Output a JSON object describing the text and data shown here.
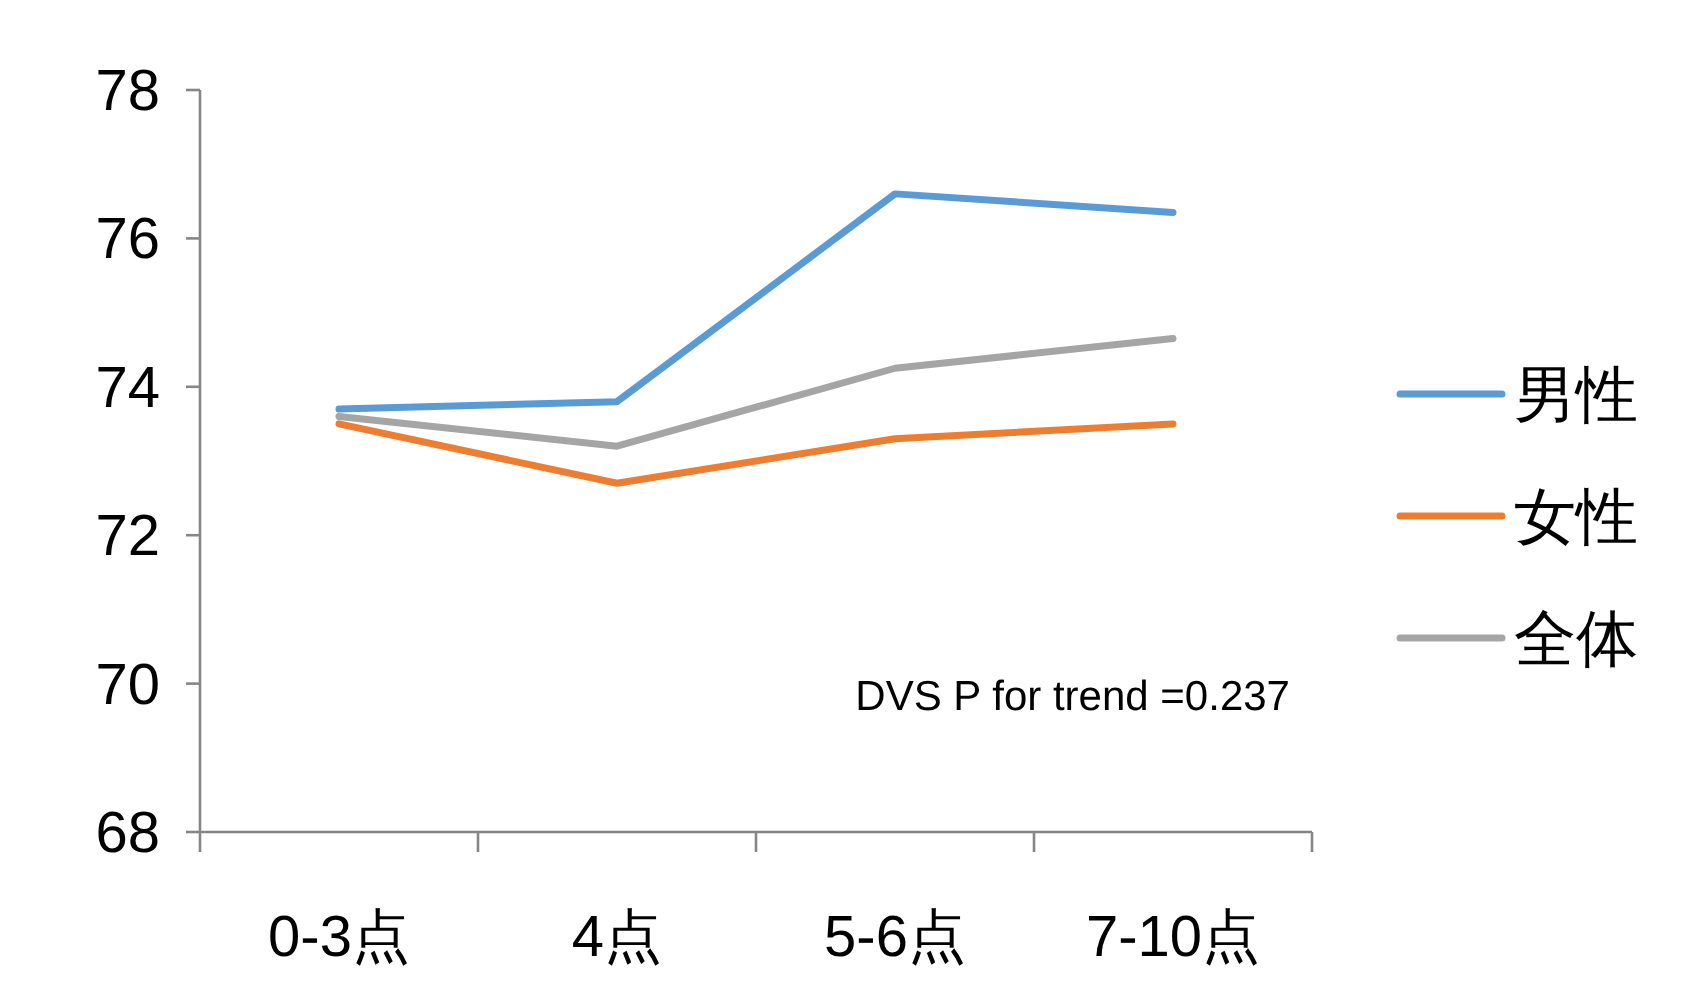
{
  "chart_data": {
    "type": "line",
    "categories": [
      "0-3点",
      "4点",
      "5-6点",
      "7-10点"
    ],
    "series": [
      {
        "name": "男性",
        "color": "#5b9bd5",
        "values": [
          73.7,
          73.8,
          76.6,
          76.35
        ]
      },
      {
        "name": "女性",
        "color": "#ed7d31",
        "values": [
          73.5,
          72.7,
          73.3,
          73.5
        ]
      },
      {
        "name": "全体",
        "color": "#a5a5a5",
        "values": [
          73.6,
          73.2,
          74.25,
          74.65
        ]
      }
    ],
    "ylim": [
      68,
      78
    ],
    "yticks": [
      68,
      70,
      72,
      74,
      76,
      78
    ],
    "grid": false,
    "legend": "right",
    "marker": "none",
    "line_style": "solid",
    "annotations": [
      {
        "text": "DVS P for trend =0.237"
      }
    ]
  }
}
